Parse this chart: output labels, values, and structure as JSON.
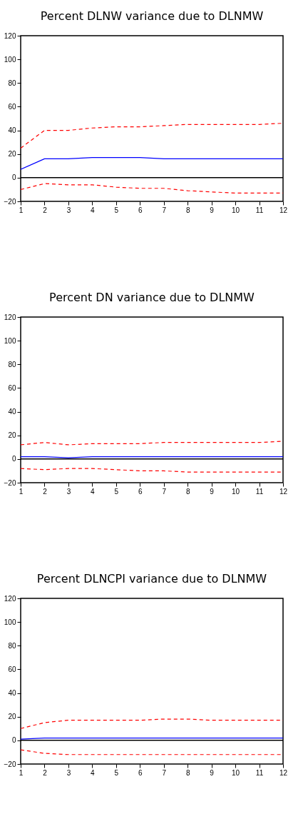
{
  "chart_data": [
    {
      "type": "line",
      "title": "Percent DLNW variance due to DLNMW",
      "x": [
        1,
        2,
        3,
        4,
        5,
        6,
        7,
        8,
        9,
        10,
        11,
        12
      ],
      "xlim": [
        1,
        12
      ],
      "xticks": [
        1,
        2,
        3,
        4,
        5,
        6,
        7,
        8,
        9,
        10,
        11,
        12
      ],
      "ylim": [
        -20,
        120
      ],
      "yticks": [
        -20,
        0,
        20,
        40,
        60,
        80,
        100,
        120
      ],
      "grid": false,
      "series": [
        {
          "color": "#0000ff",
          "line_style": "solid",
          "values": [
            7,
            16,
            16,
            17,
            17,
            17,
            16,
            16,
            16,
            16,
            16,
            16
          ]
        },
        {
          "color": "#ff0000",
          "line_style": "dashed",
          "values": [
            25,
            40,
            40,
            42,
            43,
            43,
            44,
            45,
            45,
            45,
            45,
            46
          ]
        },
        {
          "color": "#ff0000",
          "line_style": "dashed",
          "values": [
            -10,
            -5,
            -6,
            -6,
            -8,
            -9,
            -9,
            -11,
            -12,
            -13,
            -13,
            -13
          ]
        }
      ],
      "ref_lines": [
        {
          "axis": "y",
          "value": 0,
          "color": "#000000"
        }
      ]
    },
    {
      "type": "line",
      "title": "Percent DN variance due to DLNMW",
      "x": [
        1,
        2,
        3,
        4,
        5,
        6,
        7,
        8,
        9,
        10,
        11,
        12
      ],
      "xlim": [
        1,
        12
      ],
      "xticks": [
        1,
        2,
        3,
        4,
        5,
        6,
        7,
        8,
        9,
        10,
        11,
        12
      ],
      "ylim": [
        -20,
        120
      ],
      "yticks": [
        -20,
        0,
        20,
        40,
        60,
        80,
        100,
        120
      ],
      "grid": false,
      "series": [
        {
          "color": "#0000ff",
          "line_style": "solid",
          "values": [
            2,
            2,
            1,
            2,
            2,
            2,
            2,
            2,
            2,
            2,
            2,
            2
          ]
        },
        {
          "color": "#ff0000",
          "line_style": "dashed",
          "values": [
            12,
            14,
            12,
            13,
            13,
            13,
            14,
            14,
            14,
            14,
            14,
            15
          ]
        },
        {
          "color": "#ff0000",
          "line_style": "dashed",
          "values": [
            -8,
            -9,
            -8,
            -8,
            -9,
            -10,
            -10,
            -11,
            -11,
            -11,
            -11,
            -11
          ]
        }
      ],
      "ref_lines": [
        {
          "axis": "y",
          "value": 0,
          "color": "#000000"
        }
      ]
    },
    {
      "type": "line",
      "title": "Percent DLNCPI variance due to DLNMW",
      "x": [
        1,
        2,
        3,
        4,
        5,
        6,
        7,
        8,
        9,
        10,
        11,
        12
      ],
      "xlim": [
        1,
        12
      ],
      "xticks": [
        1,
        2,
        3,
        4,
        5,
        6,
        7,
        8,
        9,
        10,
        11,
        12
      ],
      "ylim": [
        -20,
        120
      ],
      "yticks": [
        -20,
        0,
        20,
        40,
        60,
        80,
        100,
        120
      ],
      "grid": false,
      "series": [
        {
          "color": "#0000ff",
          "line_style": "solid",
          "values": [
            1,
            2,
            2,
            2,
            2,
            2,
            2,
            2,
            2,
            2,
            2,
            2
          ]
        },
        {
          "color": "#ff0000",
          "line_style": "dashed",
          "values": [
            10,
            15,
            17,
            17,
            17,
            17,
            18,
            18,
            17,
            17,
            17,
            17
          ]
        },
        {
          "color": "#ff0000",
          "line_style": "dashed",
          "values": [
            -8,
            -11,
            -12,
            -12,
            -12,
            -12,
            -12,
            -12,
            -12,
            -12,
            -12,
            -12
          ]
        }
      ],
      "ref_lines": [
        {
          "axis": "y",
          "value": 0,
          "color": "#000000"
        }
      ]
    }
  ]
}
